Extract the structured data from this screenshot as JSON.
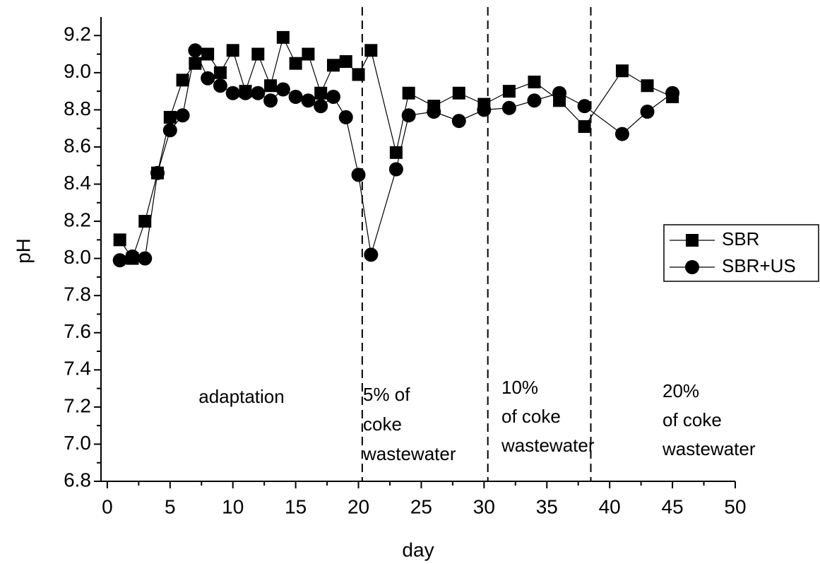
{
  "chart_data": {
    "type": "line",
    "xlabel": "day",
    "ylabel": "pH",
    "x": [
      1,
      2,
      3,
      4,
      5,
      6,
      7,
      8,
      9,
      10,
      11,
      12,
      13,
      14,
      15,
      16,
      17,
      18,
      19,
      20,
      21,
      23,
      24,
      26,
      28,
      30,
      32,
      34,
      36,
      38,
      41,
      43,
      45
    ],
    "series": [
      {
        "name": "SBR",
        "color": "#000000",
        "marker": "square",
        "values": [
          8.1,
          8.0,
          8.2,
          8.46,
          8.76,
          8.96,
          9.05,
          9.1,
          9.0,
          9.12,
          8.9,
          9.1,
          8.93,
          9.19,
          9.05,
          9.1,
          8.89,
          9.04,
          9.06,
          8.99,
          9.12,
          8.57,
          8.89,
          8.82,
          8.89,
          8.83,
          8.9,
          8.95,
          8.85,
          8.71,
          9.01,
          8.93,
          8.87
        ]
      },
      {
        "name": "SBR+US",
        "color": "#000000",
        "marker": "circle",
        "values": [
          7.99,
          8.01,
          8.0,
          8.46,
          8.69,
          8.77,
          9.12,
          8.97,
          8.93,
          8.89,
          8.89,
          8.89,
          8.85,
          8.91,
          8.87,
          8.85,
          8.82,
          8.87,
          8.76,
          8.45,
          8.02,
          8.48,
          8.77,
          8.79,
          8.74,
          8.8,
          8.81,
          8.85,
          8.89,
          8.82,
          8.67,
          8.79,
          8.89
        ]
      }
    ],
    "xlim": [
      -0.5,
      50
    ],
    "xticks": [
      0,
      5,
      10,
      15,
      20,
      25,
      30,
      35,
      40,
      45,
      50
    ],
    "ylim": [
      6.8,
      9.3
    ],
    "yticks": [
      6.8,
      {
        "value": 7,
        "label": "7.0"
      },
      7.2,
      7.4,
      7.6,
      7.8,
      {
        "value": 8,
        "label": "8.0"
      },
      8.2,
      8.4,
      8.6,
      8.8,
      {
        "value": 9,
        "label": "9.0"
      },
      9.2
    ],
    "vlines": [
      20.3,
      30.3,
      38.5
    ],
    "annotations": [
      [
        "adaptation"
      ],
      [
        "5% of",
        "coke",
        "wastewater"
      ],
      [
        "10%",
        "of coke",
        "wastewater"
      ],
      [
        "20%",
        "of coke",
        "wastewater"
      ]
    ],
    "legend": "right"
  }
}
